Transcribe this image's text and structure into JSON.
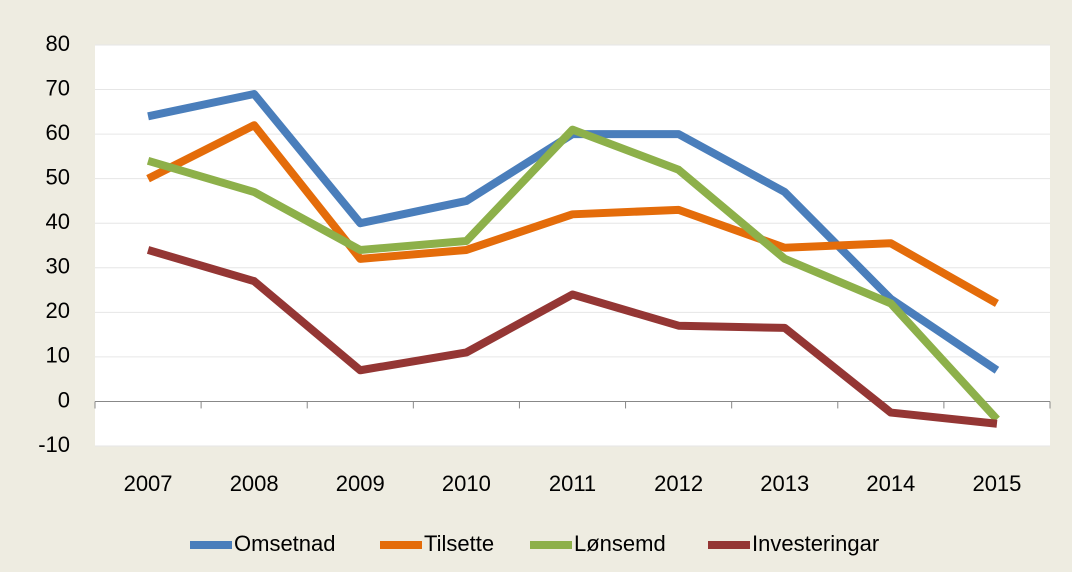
{
  "chart_data": {
    "type": "line",
    "categories": [
      "2007",
      "2008",
      "2009",
      "2010",
      "2011",
      "2012",
      "2013",
      "2014",
      "2015"
    ],
    "series": [
      {
        "name": "Omsetnad",
        "color": "#4a7ebb",
        "values": [
          64,
          69,
          40,
          45,
          60,
          60,
          47,
          23,
          7
        ]
      },
      {
        "name": "Tilsette",
        "color": "#e46c0a",
        "values": [
          50,
          62,
          32,
          34,
          42,
          43,
          34.5,
          35.5,
          22
        ]
      },
      {
        "name": "Lønsemd",
        "color": "#8db04a",
        "values": [
          54,
          47,
          34,
          36,
          61,
          52,
          32,
          22,
          -4
        ]
      },
      {
        "name": "Investeringar",
        "color": "#943634",
        "values": [
          34,
          27,
          7,
          11,
          24,
          17,
          16.5,
          -2.5,
          -5
        ]
      }
    ],
    "ylim": [
      -10,
      80
    ],
    "yticks": [
      -10,
      0,
      10,
      20,
      30,
      40,
      50,
      60,
      70,
      80
    ],
    "grid": true,
    "legend": "bottom"
  }
}
